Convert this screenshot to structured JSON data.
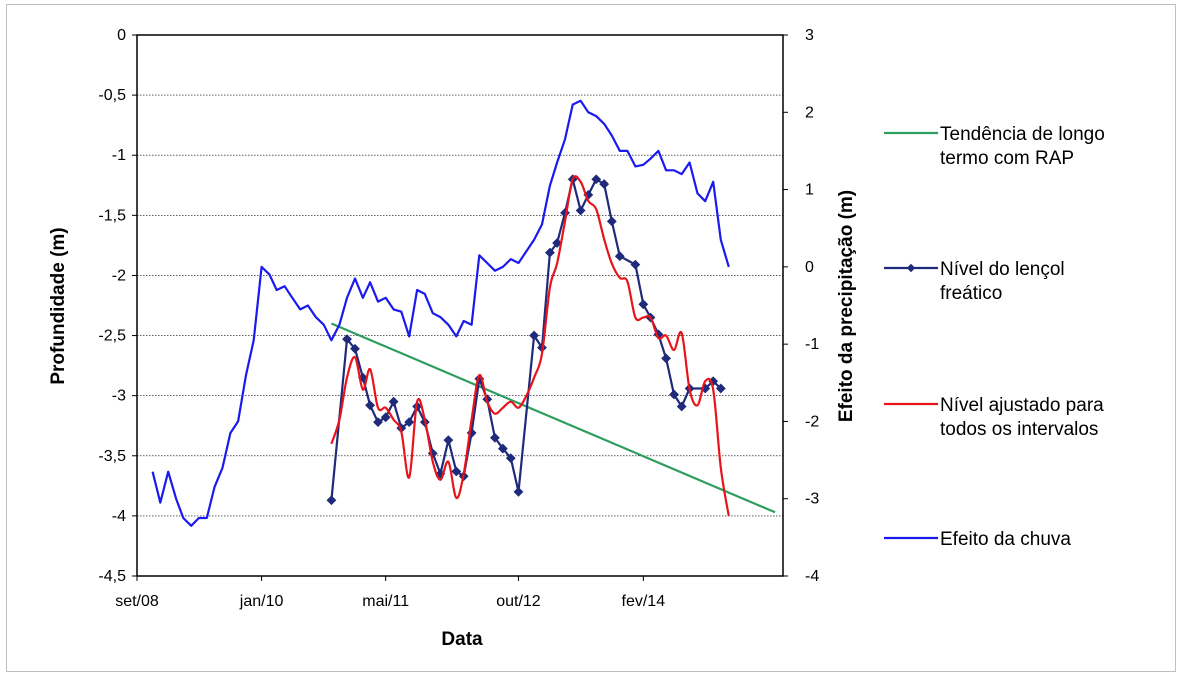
{
  "chart_data": {
    "type": "line",
    "xlabel": "Data",
    "ylabel_left": "Profundidade (m)",
    "ylabel_right": "Efeito da precipitação (m)",
    "x_ticks": [
      {
        "label": "set/08",
        "date": "2008-09-01"
      },
      {
        "label": "jan/10",
        "date": "2010-01-01"
      },
      {
        "label": "mai/11",
        "date": "2011-05-01"
      },
      {
        "label": "out/12",
        "date": "2012-10-01"
      },
      {
        "label": "fev/14",
        "date": "2014-02-01"
      }
    ],
    "xlim": [
      "2008-09-01",
      "2015-08-01"
    ],
    "ylim_left": [
      -4.5,
      0
    ],
    "yticks_left": [
      0,
      -0.5,
      -1,
      -1.5,
      -2,
      -2.5,
      -3,
      -3.5,
      -4,
      -4.5
    ],
    "ytick_labels_left": [
      "0",
      "-0,5",
      "-1",
      "-1,5",
      "-2",
      "-2,5",
      "-3",
      "-3,5",
      "-4",
      "-4,5"
    ],
    "ylim_right": [
      -4,
      3
    ],
    "yticks_right": [
      3,
      2,
      1,
      0,
      -1,
      -2,
      -3,
      -4
    ],
    "ytick_labels_right": [
      "3",
      "2",
      "1",
      "0",
      "-1",
      "-2",
      "-3",
      "-4"
    ],
    "grid": "horizontal",
    "legend_position": "right",
    "series": [
      {
        "name": "Tendência de longo termo com RAP",
        "axis": "left",
        "color": "#2e9e5e",
        "marker": "none",
        "points": [
          [
            "2010-10-01",
            -2.4
          ],
          [
            "2015-07-01",
            -3.97
          ]
        ]
      },
      {
        "name": "Nível do lençol freático",
        "axis": "left",
        "color": "#1f2a7a",
        "marker": "diamond",
        "points": [
          [
            "2010-10-01",
            -3.87
          ],
          [
            "2010-12-01",
            -2.53
          ],
          [
            "2011-01-01",
            -2.61
          ],
          [
            "2011-02-01",
            -2.85
          ],
          [
            "2011-03-01",
            -3.08
          ],
          [
            "2011-04-01",
            -3.22
          ],
          [
            "2011-05-01",
            -3.18
          ],
          [
            "2011-06-01",
            -3.05
          ],
          [
            "2011-07-01",
            -3.27
          ],
          [
            "2011-08-01",
            -3.22
          ],
          [
            "2011-09-01",
            -3.09
          ],
          [
            "2011-10-01",
            -3.22
          ],
          [
            "2011-11-01",
            -3.48
          ],
          [
            "2011-12-01",
            -3.65
          ],
          [
            "2012-01-01",
            -3.37
          ],
          [
            "2012-02-01",
            -3.63
          ],
          [
            "2012-03-01",
            -3.67
          ],
          [
            "2012-04-01",
            -3.31
          ],
          [
            "2012-05-01",
            -2.86
          ],
          [
            "2012-06-01",
            -3.03
          ],
          [
            "2012-07-01",
            -3.35
          ],
          [
            "2012-08-01",
            -3.44
          ],
          [
            "2012-09-01",
            -3.52
          ],
          [
            "2012-10-01",
            -3.8
          ],
          [
            "2012-12-01",
            -2.5
          ],
          [
            "2013-01-01",
            -2.6
          ],
          [
            "2013-02-01",
            -1.81
          ],
          [
            "2013-03-01",
            -1.73
          ],
          [
            "2013-04-01",
            -1.48
          ],
          [
            "2013-05-01",
            -1.2
          ],
          [
            "2013-06-01",
            -1.46
          ],
          [
            "2013-07-01",
            -1.33
          ],
          [
            "2013-08-01",
            -1.2
          ],
          [
            "2013-09-01",
            -1.24
          ],
          [
            "2013-10-01",
            -1.55
          ],
          [
            "2013-11-01",
            -1.84
          ],
          [
            "2014-01-01",
            -1.91
          ],
          [
            "2014-02-01",
            -2.24
          ],
          [
            "2014-03-01",
            -2.35
          ],
          [
            "2014-04-01",
            -2.49
          ],
          [
            "2014-05-01",
            -2.69
          ],
          [
            "2014-06-01",
            -2.99
          ],
          [
            "2014-07-01",
            -3.09
          ],
          [
            "2014-08-01",
            -2.94
          ],
          [
            "2014-10-01",
            -2.94
          ],
          [
            "2014-11-01",
            -2.88
          ],
          [
            "2014-12-01",
            -2.94
          ]
        ]
      },
      {
        "name": "Nível ajustado para todos os intervalos",
        "axis": "left",
        "color": "#e8141a",
        "marker": "none",
        "points": [
          [
            "2010-10-01",
            -3.4
          ],
          [
            "2010-11-01",
            -3.2
          ],
          [
            "2010-12-01",
            -2.85
          ],
          [
            "2011-01-01",
            -2.68
          ],
          [
            "2011-02-01",
            -2.95
          ],
          [
            "2011-03-01",
            -2.78
          ],
          [
            "2011-04-01",
            -3.1
          ],
          [
            "2011-05-01",
            -3.1
          ],
          [
            "2011-06-01",
            -3.2
          ],
          [
            "2011-07-01",
            -3.3
          ],
          [
            "2011-08-01",
            -3.68
          ],
          [
            "2011-09-01",
            -3.05
          ],
          [
            "2011-10-01",
            -3.2
          ],
          [
            "2011-11-01",
            -3.55
          ],
          [
            "2011-12-01",
            -3.7
          ],
          [
            "2012-01-01",
            -3.55
          ],
          [
            "2012-02-01",
            -3.85
          ],
          [
            "2012-03-01",
            -3.65
          ],
          [
            "2012-04-01",
            -3.2
          ],
          [
            "2012-05-01",
            -2.83
          ],
          [
            "2012-06-01",
            -3.05
          ],
          [
            "2012-07-01",
            -3.15
          ],
          [
            "2012-08-01",
            -3.1
          ],
          [
            "2012-09-01",
            -3.05
          ],
          [
            "2012-10-01",
            -3.1
          ],
          [
            "2012-11-01",
            -3.0
          ],
          [
            "2012-12-01",
            -2.85
          ],
          [
            "2013-01-01",
            -2.65
          ],
          [
            "2013-02-01",
            -2.1
          ],
          [
            "2013-03-01",
            -1.9
          ],
          [
            "2013-04-01",
            -1.55
          ],
          [
            "2013-05-01",
            -1.2
          ],
          [
            "2013-06-01",
            -1.22
          ],
          [
            "2013-07-01",
            -1.38
          ],
          [
            "2013-08-01",
            -1.45
          ],
          [
            "2013-09-01",
            -1.7
          ],
          [
            "2013-10-01",
            -1.9
          ],
          [
            "2013-11-01",
            -2.02
          ],
          [
            "2013-12-01",
            -2.05
          ],
          [
            "2014-01-01",
            -2.35
          ],
          [
            "2014-02-01",
            -2.35
          ],
          [
            "2014-03-01",
            -2.35
          ],
          [
            "2014-04-01",
            -2.52
          ],
          [
            "2014-05-01",
            -2.5
          ],
          [
            "2014-06-01",
            -2.62
          ],
          [
            "2014-07-01",
            -2.48
          ],
          [
            "2014-08-01",
            -2.95
          ],
          [
            "2014-09-01",
            -3.08
          ],
          [
            "2014-10-01",
            -2.88
          ],
          [
            "2014-11-01",
            -2.95
          ],
          [
            "2014-12-01",
            -3.6
          ],
          [
            "2015-01-01",
            -4.0
          ]
        ]
      },
      {
        "name": "Efeito da chuva",
        "axis": "right",
        "color": "#1a1aee",
        "marker": "none",
        "points": [
          [
            "2008-11-01",
            -2.65
          ],
          [
            "2008-12-01",
            -3.05
          ],
          [
            "2009-01-01",
            -2.65
          ],
          [
            "2009-02-01",
            -3.0
          ],
          [
            "2009-03-01",
            -3.25
          ],
          [
            "2009-04-01",
            -3.35
          ],
          [
            "2009-05-01",
            -3.25
          ],
          [
            "2009-06-01",
            -3.25
          ],
          [
            "2009-07-01",
            -2.85
          ],
          [
            "2009-08-01",
            -2.6
          ],
          [
            "2009-09-01",
            -2.15
          ],
          [
            "2009-10-01",
            -2.0
          ],
          [
            "2009-11-01",
            -1.4
          ],
          [
            "2009-12-01",
            -0.95
          ],
          [
            "2010-01-01",
            0.0
          ],
          [
            "2010-02-01",
            -0.1
          ],
          [
            "2010-03-01",
            -0.3
          ],
          [
            "2010-04-01",
            -0.25
          ],
          [
            "2010-05-01",
            -0.4
          ],
          [
            "2010-06-01",
            -0.55
          ],
          [
            "2010-07-01",
            -0.5
          ],
          [
            "2010-08-01",
            -0.65
          ],
          [
            "2010-09-01",
            -0.75
          ],
          [
            "2010-10-01",
            -0.95
          ],
          [
            "2010-11-01",
            -0.75
          ],
          [
            "2010-12-01",
            -0.4
          ],
          [
            "2011-01-01",
            -0.15
          ],
          [
            "2011-02-01",
            -0.4
          ],
          [
            "2011-03-01",
            -0.2
          ],
          [
            "2011-04-01",
            -0.45
          ],
          [
            "2011-05-01",
            -0.4
          ],
          [
            "2011-06-01",
            -0.55
          ],
          [
            "2011-07-01",
            -0.58
          ],
          [
            "2011-08-01",
            -0.9
          ],
          [
            "2011-09-01",
            -0.3
          ],
          [
            "2011-10-01",
            -0.35
          ],
          [
            "2011-11-01",
            -0.6
          ],
          [
            "2011-12-01",
            -0.65
          ],
          [
            "2012-01-01",
            -0.75
          ],
          [
            "2012-02-01",
            -0.9
          ],
          [
            "2012-03-01",
            -0.7
          ],
          [
            "2012-04-01",
            -0.75
          ],
          [
            "2012-05-01",
            0.15
          ],
          [
            "2012-06-01",
            0.05
          ],
          [
            "2012-07-01",
            -0.05
          ],
          [
            "2012-08-01",
            0.0
          ],
          [
            "2012-09-01",
            0.1
          ],
          [
            "2012-10-01",
            0.05
          ],
          [
            "2012-12-01",
            0.35
          ],
          [
            "2013-01-01",
            0.55
          ],
          [
            "2013-02-01",
            1.05
          ],
          [
            "2013-03-01",
            1.35
          ],
          [
            "2013-04-01",
            1.65
          ],
          [
            "2013-05-01",
            2.1
          ],
          [
            "2013-06-01",
            2.15
          ],
          [
            "2013-07-01",
            2.0
          ],
          [
            "2013-08-01",
            1.95
          ],
          [
            "2013-09-01",
            1.85
          ],
          [
            "2013-10-01",
            1.7
          ],
          [
            "2013-11-01",
            1.5
          ],
          [
            "2013-12-01",
            1.5
          ],
          [
            "2014-01-01",
            1.3
          ],
          [
            "2014-02-01",
            1.32
          ],
          [
            "2014-03-01",
            1.4
          ],
          [
            "2014-04-01",
            1.5
          ],
          [
            "2014-05-01",
            1.25
          ],
          [
            "2014-06-01",
            1.25
          ],
          [
            "2014-07-01",
            1.2
          ],
          [
            "2014-08-01",
            1.35
          ],
          [
            "2014-09-01",
            0.95
          ],
          [
            "2014-10-01",
            0.85
          ],
          [
            "2014-11-01",
            1.1
          ],
          [
            "2014-12-01",
            0.35
          ],
          [
            "2015-01-01",
            0.0
          ]
        ]
      }
    ]
  }
}
